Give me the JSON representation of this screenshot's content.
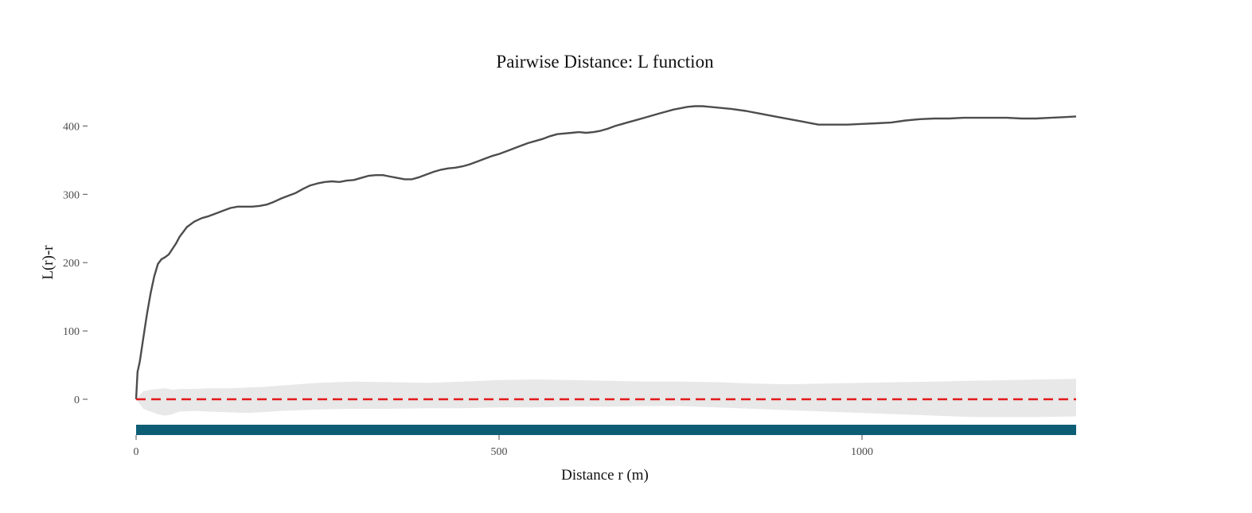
{
  "chart_data": {
    "type": "line",
    "title": "Pairwise Distance: L function",
    "xlabel": "Distance r (m)",
    "ylabel": "L(r)-r",
    "xlim": [
      0,
      1300
    ],
    "ylim": [
      -55,
      440
    ],
    "xticks": [
      0,
      500,
      1000
    ],
    "yticks": [
      0,
      100,
      200,
      300,
      400
    ],
    "xtick_labels": [
      "0",
      "500",
      "1000"
    ],
    "ytick_labels": [
      "0",
      "100",
      "200",
      "300",
      "400"
    ],
    "grid": false,
    "legend": "none",
    "series": [
      {
        "role": "observed",
        "color": "#4d4d4d",
        "style": "solid",
        "x": [
          0,
          2,
          5,
          10,
          15,
          20,
          25,
          30,
          35,
          40,
          45,
          50,
          55,
          60,
          65,
          70,
          80,
          90,
          100,
          110,
          120,
          130,
          140,
          150,
          160,
          170,
          180,
          190,
          200,
          210,
          220,
          230,
          240,
          250,
          260,
          270,
          280,
          290,
          300,
          310,
          320,
          330,
          340,
          350,
          360,
          370,
          380,
          390,
          400,
          410,
          420,
          430,
          440,
          450,
          460,
          470,
          480,
          490,
          500,
          510,
          520,
          530,
          540,
          550,
          560,
          570,
          580,
          590,
          600,
          610,
          620,
          630,
          640,
          650,
          660,
          670,
          680,
          690,
          700,
          710,
          720,
          730,
          740,
          750,
          760,
          770,
          780,
          790,
          800,
          820,
          840,
          860,
          880,
          900,
          920,
          940,
          960,
          980,
          1000,
          1020,
          1040,
          1060,
          1080,
          1100,
          1120,
          1140,
          1160,
          1180,
          1200,
          1220,
          1240,
          1260,
          1280,
          1295
        ],
        "y": [
          0,
          40,
          55,
          90,
          125,
          155,
          180,
          198,
          205,
          208,
          212,
          220,
          228,
          238,
          245,
          252,
          260,
          265,
          268,
          272,
          276,
          280,
          282,
          282,
          282,
          283,
          285,
          289,
          294,
          298,
          302,
          308,
          313,
          316,
          318,
          319,
          318,
          320,
          321,
          324,
          327,
          328,
          328,
          326,
          324,
          322,
          322,
          325,
          329,
          333,
          336,
          338,
          339,
          341,
          344,
          348,
          352,
          356,
          359,
          363,
          367,
          371,
          375,
          378,
          381,
          385,
          388,
          389,
          390,
          391,
          390,
          391,
          393,
          396,
          400,
          403,
          406,
          409,
          412,
          415,
          418,
          421,
          424,
          426,
          428,
          429,
          429,
          428,
          427,
          425,
          422,
          418,
          414,
          410,
          406,
          402,
          402,
          402,
          403,
          404,
          405,
          408,
          410,
          411,
          411,
          412,
          412,
          412,
          412,
          411,
          411,
          412,
          413,
          414
        ]
      },
      {
        "role": "theoretical",
        "color": "#e31a1c",
        "style": "dashed",
        "x": [
          0,
          1295
        ],
        "y": [
          0,
          0
        ]
      }
    ],
    "envelope": {
      "color": "#e8e8e8",
      "x": [
        0,
        10,
        20,
        30,
        40,
        50,
        60,
        80,
        100,
        125,
        150,
        175,
        200,
        250,
        300,
        350,
        400,
        450,
        500,
        550,
        600,
        650,
        700,
        750,
        800,
        850,
        900,
        950,
        1000,
        1050,
        1100,
        1150,
        1200,
        1250,
        1295
      ],
      "upper": [
        0,
        12,
        14,
        15,
        16,
        14,
        15,
        15,
        16,
        16,
        17,
        18,
        20,
        24,
        26,
        25,
        24,
        26,
        28,
        29,
        28,
        27,
        26,
        26,
        25,
        23,
        22,
        23,
        24,
        25,
        26,
        27,
        28,
        29,
        30
      ],
      "lower": [
        0,
        -14,
        -18,
        -22,
        -24,
        -22,
        -18,
        -17,
        -18,
        -19,
        -20,
        -19,
        -17,
        -15,
        -14,
        -14,
        -13,
        -13,
        -12,
        -12,
        -11,
        -11,
        -10,
        -10,
        -12,
        -14,
        -16,
        -18,
        -20,
        -22,
        -24,
        -26,
        -26,
        -26,
        -25
      ]
    },
    "rug": {
      "color": "#0d5e75",
      "x_from": 0,
      "x_to": 1295
    }
  }
}
